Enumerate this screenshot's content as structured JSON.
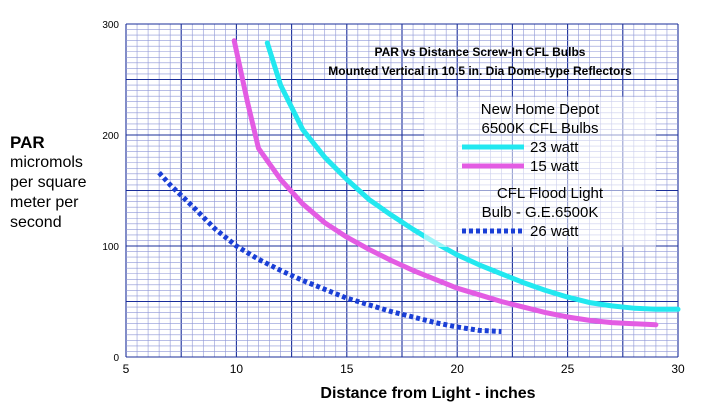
{
  "chart_data": {
    "type": "line",
    "title_lines": [
      "PAR vs Distance Screw-In CFL Bulbs",
      "Mounted Vertical in 10.5 in. Dia Dome-type Reflectors"
    ],
    "xlabel": "Distance from Light - inches",
    "ylabel_lines": [
      "PAR",
      "micromols",
      "per square",
      "meter per",
      "second"
    ],
    "xlim": [
      5,
      30
    ],
    "ylim": [
      0,
      300
    ],
    "x_ticks": [
      5,
      10,
      15,
      20,
      25,
      30
    ],
    "y_ticks": [
      0,
      100,
      200,
      300
    ],
    "grid": true,
    "legend_position": "top-right",
    "legend": {
      "group1_title": "New Home Depot 6500K CFL Bulbs",
      "group2_title": "CFL Flood Light Bulb - G.E.6500K"
    },
    "series": [
      {
        "name": "23 watt",
        "color": "#22e8f0",
        "style": "solid",
        "x": [
          11.4,
          12,
          13,
          14,
          15,
          16,
          17,
          18,
          19,
          20,
          21,
          22,
          23,
          24,
          25,
          26,
          27,
          28,
          29,
          30
        ],
        "y": [
          283,
          245,
          205,
          180,
          160,
          142,
          128,
          115,
          103,
          92,
          83,
          75,
          67,
          60,
          54,
          49,
          46,
          44,
          43,
          43
        ]
      },
      {
        "name": "15 watt",
        "color": "#e35ce3",
        "style": "solid",
        "x": [
          9.9,
          10.5,
          11,
          12,
          13,
          14,
          15,
          16,
          17,
          18,
          19,
          20,
          21,
          22,
          23,
          24,
          25,
          26,
          27,
          28,
          29
        ],
        "y": [
          285,
          230,
          188,
          160,
          138,
          121,
          108,
          97,
          87,
          78,
          70,
          62,
          56,
          50,
          45,
          40,
          36,
          33,
          31,
          30,
          29
        ]
      },
      {
        "name": "26 watt",
        "color": "#1a3fd6",
        "style": "dotted",
        "x": [
          6.5,
          7,
          8,
          9,
          10,
          11,
          12,
          13,
          14,
          15,
          16,
          17,
          18,
          19,
          20,
          21,
          22
        ],
        "y": [
          166,
          155,
          136,
          116,
          100,
          88,
          78,
          69,
          61,
          53,
          47,
          41,
          36,
          31,
          27,
          24,
          23
        ]
      }
    ]
  }
}
